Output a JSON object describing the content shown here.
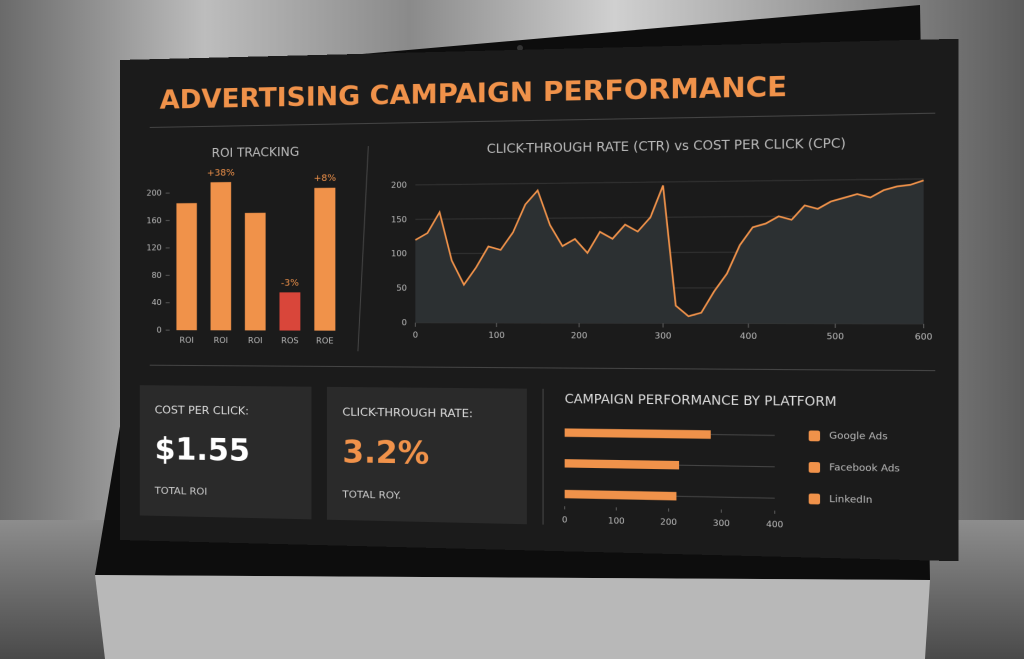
{
  "title": "ADVERTISING CAMPAIGN PERFORMANCE",
  "chart_data": [
    {
      "type": "bar",
      "title": "ROI TRACKING",
      "categories": [
        "ROI",
        "ROI",
        "ROI",
        "ROS",
        "ROE"
      ],
      "values": [
        185,
        215,
        170,
        55,
        205
      ],
      "colors": [
        "#f0924a",
        "#f0924a",
        "#f0924a",
        "#d9463a",
        "#f0924a"
      ],
      "annotations": [
        "+38%",
        "-3%",
        "+8%"
      ],
      "ylim": [
        0,
        220
      ],
      "yticks": [
        0,
        40,
        80,
        120,
        160,
        200
      ],
      "grid": false
    },
    {
      "type": "line",
      "title": "CLICK-THROUGH RATE (CTR) vs COST PER CLICK (CPC)",
      "x": [
        0,
        15,
        30,
        45,
        60,
        75,
        90,
        105,
        120,
        135,
        150,
        165,
        180,
        195,
        210,
        225,
        240,
        255,
        270,
        285,
        300,
        315,
        330,
        345,
        360,
        375,
        390,
        405,
        420,
        435,
        450,
        465,
        480,
        495,
        510,
        525,
        540,
        555,
        570,
        585,
        600
      ],
      "series": [
        {
          "name": "CTR",
          "color": "#f0924a",
          "values": [
            120,
            130,
            160,
            90,
            55,
            80,
            110,
            105,
            130,
            170,
            190,
            140,
            110,
            120,
            100,
            130,
            120,
            140,
            130,
            150,
            195,
            25,
            10,
            15,
            45,
            70,
            110,
            135,
            140,
            150,
            145,
            165,
            160,
            170,
            175,
            180,
            175,
            185,
            190,
            192,
            198
          ]
        }
      ],
      "xlim": [
        0,
        600
      ],
      "xticks": [
        0,
        100,
        200,
        300,
        400,
        500,
        600
      ],
      "ylim": [
        0,
        220
      ],
      "yticks": [
        0,
        50,
        100,
        150,
        200
      ],
      "grid": true
    },
    {
      "type": "hbar",
      "title": "CAMPAIGN PERFORMANCE BY PLATFORM",
      "categories": [
        "Google Ads",
        "Facebook Ads",
        "LinkedIn"
      ],
      "values": [
        280,
        220,
        215
      ],
      "color": "#f0924a",
      "xlim": [
        0,
        400
      ],
      "xticks": [
        0,
        100,
        200,
        300,
        400
      ],
      "grid": true
    }
  ],
  "kpis": [
    {
      "label": "COST PER CLICK:",
      "value": "$1.55",
      "caption": "TOTAL ROI"
    },
    {
      "label": "CLICK-THROUGH RATE:",
      "value": "3.2%",
      "caption": "TOTAL ROY."
    }
  ]
}
